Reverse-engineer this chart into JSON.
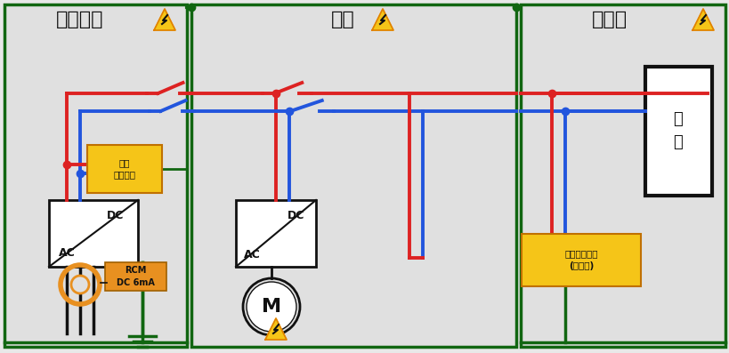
{
  "bg_color": "#e8e8e8",
  "box_border_color": "#22aa22",
  "red": "#dd2222",
  "blue": "#2255dd",
  "green_dark": "#116611",
  "black": "#111111",
  "orange": "#e89020",
  "yellow_box": "#f5c518",
  "gray_box": "#e0e0e0",
  "section1_title": "直流快充",
  "section2_title": "车身",
  "section3_title": "电池包",
  "label1": "主动\n绝缘检测",
  "label2": "主动绝缘检测\n(双通道)",
  "label_rcm": "RCM\nDC 6mA",
  "label_dc": "DC",
  "label_ac": "AC",
  "label_cell": "电\n芯"
}
